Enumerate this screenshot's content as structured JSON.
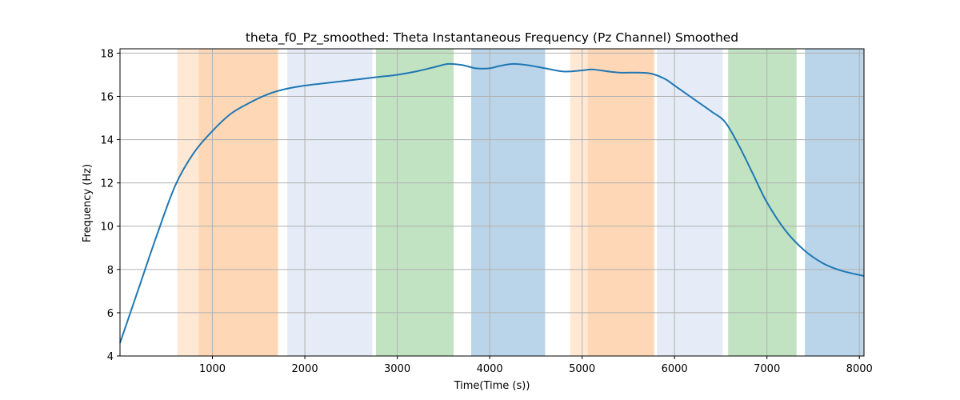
{
  "chart_data": {
    "type": "line",
    "title": "theta_f0_Pz_smoothed: Theta Instantaneous Frequency (Pz Channel) Smoothed",
    "xlabel": "Time(Time (s))",
    "ylabel": "Frequency (Hz)",
    "xlim": [
      0,
      8050
    ],
    "ylim": [
      4,
      18.2
    ],
    "xticks": [
      1000,
      2000,
      3000,
      4000,
      5000,
      6000,
      7000,
      8000
    ],
    "yticks": [
      4,
      6,
      8,
      10,
      12,
      14,
      16,
      18
    ],
    "grid": true,
    "line_color": "#1f77b4",
    "bands": [
      {
        "x0": 620,
        "x1": 850,
        "color": "#ffe9d5"
      },
      {
        "x0": 850,
        "x1": 1710,
        "color": "#fed8b6"
      },
      {
        "x0": 1810,
        "x1": 2730,
        "color": "#e5ecf7"
      },
      {
        "x0": 2770,
        "x1": 3610,
        "color": "#c1e3c1"
      },
      {
        "x0": 3800,
        "x1": 4600,
        "color": "#bad5e9"
      },
      {
        "x0": 4870,
        "x1": 5060,
        "color": "#ffe9d5"
      },
      {
        "x0": 5060,
        "x1": 5780,
        "color": "#fed8b6"
      },
      {
        "x0": 5810,
        "x1": 6520,
        "color": "#e5ecf7"
      },
      {
        "x0": 6580,
        "x1": 7320,
        "color": "#c1e3c1"
      },
      {
        "x0": 7410,
        "x1": 8050,
        "color": "#bad5e9"
      }
    ],
    "series": [
      {
        "x": [
          0,
          200,
          400,
          600,
          800,
          1000,
          1200,
          1400,
          1600,
          1800,
          2000,
          2200,
          2400,
          2600,
          2800,
          3000,
          3200,
          3400,
          3550,
          3700,
          3850,
          4000,
          4100,
          4250,
          4400,
          4600,
          4800,
          5000,
          5100,
          5200,
          5400,
          5600,
          5750,
          5900,
          6000,
          6200,
          6400,
          6550,
          6700,
          6850,
          7000,
          7200,
          7400,
          7600,
          7800,
          8050
        ],
        "y": [
          4.6,
          7.1,
          9.6,
          11.9,
          13.4,
          14.4,
          15.2,
          15.7,
          16.1,
          16.35,
          16.5,
          16.6,
          16.7,
          16.8,
          16.9,
          17.0,
          17.15,
          17.35,
          17.5,
          17.45,
          17.3,
          17.3,
          17.4,
          17.5,
          17.45,
          17.3,
          17.15,
          17.2,
          17.25,
          17.2,
          17.1,
          17.1,
          17.05,
          16.8,
          16.5,
          15.9,
          15.3,
          14.8,
          13.7,
          12.4,
          11.1,
          9.8,
          8.9,
          8.3,
          7.95,
          7.7
        ]
      }
    ]
  }
}
